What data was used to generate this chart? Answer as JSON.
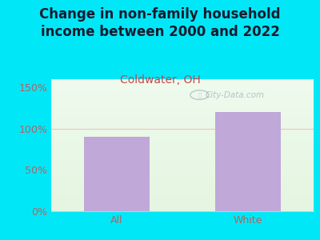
{
  "title": "Change in non-family household\nincome between 2000 and 2022",
  "subtitle": "Coldwater, OH",
  "categories": [
    "All",
    "White"
  ],
  "values": [
    90,
    120
  ],
  "bar_color": "#c0a8d8",
  "title_color": "#1a1a2e",
  "subtitle_color": "#cc4444",
  "tick_label_color": "#aa6666",
  "background_outer": "#00e8f8",
  "ylim": [
    0,
    160
  ],
  "yticks": [
    0,
    50,
    100,
    150
  ],
  "ytick_labels": [
    "0%",
    "50%",
    "100%",
    "150%"
  ],
  "watermark": "City-Data.com",
  "title_fontsize": 12,
  "subtitle_fontsize": 10,
  "tick_fontsize": 9,
  "grid_color": "#f0c0c0",
  "grid_only_at_100": true
}
